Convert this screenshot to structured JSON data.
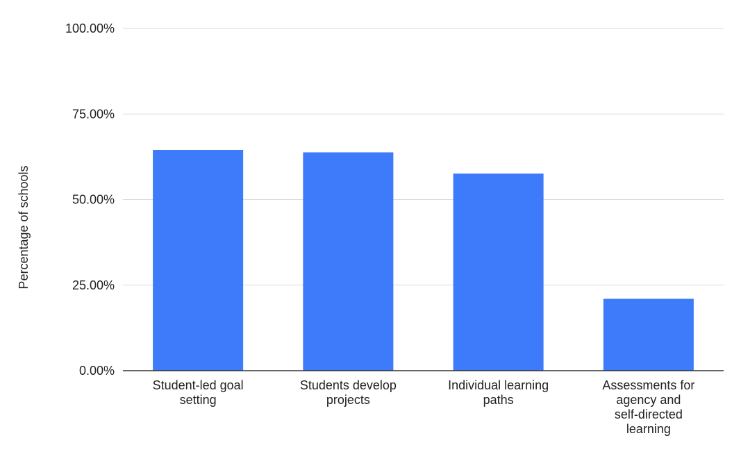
{
  "chart_data": {
    "type": "bar",
    "title": "",
    "xlabel": "",
    "ylabel": "Percentage of schools",
    "categories": [
      [
        "Student-led goal",
        "setting"
      ],
      [
        "Students develop",
        "projects"
      ],
      [
        "Individual learning",
        "paths"
      ],
      [
        "Assessments for",
        "agency and",
        "self-directed",
        "learning"
      ]
    ],
    "values": [
      0.645,
      0.638,
      0.576,
      0.21
    ],
    "ylim": [
      0,
      1
    ],
    "yticks": [
      0,
      0.25,
      0.5,
      0.75,
      1
    ],
    "ytick_labels": [
      "0.00%",
      "25.00%",
      "50.00%",
      "75.00%",
      "100.00%"
    ],
    "grid": true,
    "legend": "none",
    "bar_color": "#3d7bfb",
    "grid_color": "#d9d9d9",
    "axis_color": "#333333"
  }
}
